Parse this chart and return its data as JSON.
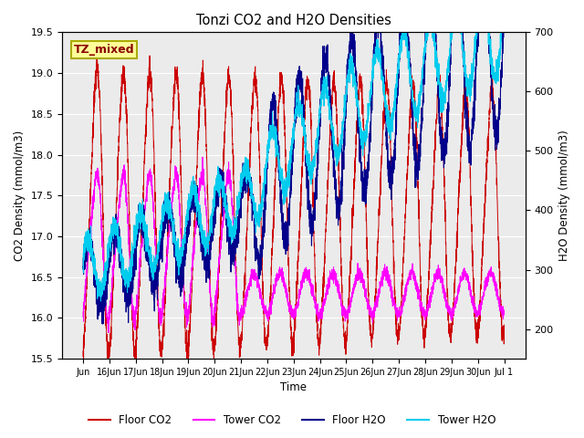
{
  "title": "Tonzi CO2 and H2O Densities",
  "xlabel": "Time",
  "ylabel_left": "CO2 Density (mmol/m3)",
  "ylabel_right": "H2O Density (mmol/m3)",
  "annotation_text": "TZ_mixed",
  "annotation_color": "#8B0000",
  "annotation_bg": "#FFFF99",
  "annotation_border": "#AAAA00",
  "ylim_left": [
    15.5,
    19.5
  ],
  "ylim_right": [
    150,
    700
  ],
  "legend_labels": [
    "Floor CO2",
    "Tower CO2",
    "Floor H2O",
    "Tower H2O"
  ],
  "line_colors": {
    "floor_co2": "#CC0000",
    "tower_co2": "#FF00FF",
    "floor_h2o": "#00008B",
    "tower_h2o": "#00CCEE"
  },
  "axes_bg": "#EBEBEB",
  "n_points": 3840,
  "seed": 7
}
